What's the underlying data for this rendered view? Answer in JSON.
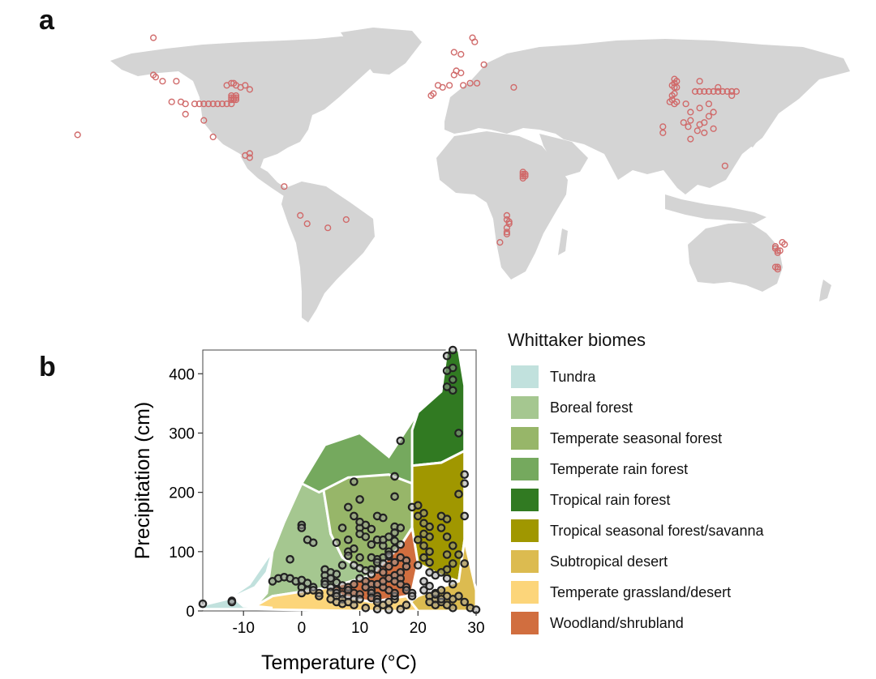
{
  "panels": {
    "a": "a",
    "b": "b"
  },
  "colors": {
    "land": "#d4d4d4",
    "site_marker": "#d06a6a",
    "point_stroke": "#222222",
    "point_fill": "#9a9a9a"
  },
  "map": {
    "sites_lonlat": [
      [
        -124,
        68
      ],
      [
        -124,
        50
      ],
      [
        -123,
        49
      ],
      [
        -120,
        47
      ],
      [
        -114,
        47
      ],
      [
        -82,
        43
      ],
      [
        -84,
        45
      ],
      [
        -86,
        44
      ],
      [
        -88,
        45
      ],
      [
        -92,
        45
      ],
      [
        -116,
        37
      ],
      [
        -112,
        37
      ],
      [
        -110,
        36
      ],
      [
        -106,
        36
      ],
      [
        -104,
        36
      ],
      [
        -102,
        36
      ],
      [
        -100,
        36
      ],
      [
        -98,
        36
      ],
      [
        -96,
        36
      ],
      [
        -94,
        36
      ],
      [
        -92,
        36
      ],
      [
        -90,
        36
      ],
      [
        -90,
        38
      ],
      [
        -89,
        38
      ],
      [
        -88,
        38
      ],
      [
        -90,
        39
      ],
      [
        -89,
        39
      ],
      [
        -88,
        39
      ],
      [
        -90,
        40
      ],
      [
        -88,
        40
      ],
      [
        -89,
        46
      ],
      [
        -90,
        46
      ],
      [
        -110,
        31
      ],
      [
        -102,
        28
      ],
      [
        -98,
        20
      ],
      [
        -84,
        11
      ],
      [
        -82,
        10
      ],
      [
        -82,
        12
      ],
      [
        -67,
        -4
      ],
      [
        -60,
        -18
      ],
      [
        -48,
        -24
      ],
      [
        -40,
        -20
      ],
      [
        -57,
        -22
      ],
      [
        -157,
        21
      ],
      [
        7,
        61
      ],
      [
        10,
        60
      ],
      [
        15,
        68
      ],
      [
        16,
        66
      ],
      [
        20,
        55
      ],
      [
        7,
        50
      ],
      [
        8,
        52
      ],
      [
        10,
        51
      ],
      [
        11,
        45
      ],
      [
        14,
        46
      ],
      [
        17,
        46
      ],
      [
        0,
        45
      ],
      [
        2,
        44
      ],
      [
        5,
        45
      ],
      [
        -3,
        40
      ],
      [
        -2,
        41
      ],
      [
        33,
        44
      ],
      [
        37,
        3
      ],
      [
        37,
        2
      ],
      [
        38,
        2
      ],
      [
        38,
        1
      ],
      [
        37,
        1
      ],
      [
        37,
        0
      ],
      [
        30,
        -18
      ],
      [
        30,
        -20
      ],
      [
        31,
        -21
      ],
      [
        31,
        -22
      ],
      [
        30,
        -24
      ],
      [
        30,
        -26
      ],
      [
        30,
        -27
      ],
      [
        27,
        -31
      ],
      [
        103,
        48
      ],
      [
        104,
        47
      ],
      [
        103,
        46
      ],
      [
        102,
        45
      ],
      [
        103,
        44
      ],
      [
        104,
        44
      ],
      [
        103,
        41
      ],
      [
        102,
        40
      ],
      [
        102,
        38
      ],
      [
        101,
        37
      ],
      [
        104,
        37
      ],
      [
        103,
        36
      ],
      [
        112,
        42
      ],
      [
        114,
        42
      ],
      [
        116,
        42
      ],
      [
        118,
        42
      ],
      [
        120,
        42
      ],
      [
        122,
        42
      ],
      [
        124,
        42
      ],
      [
        126,
        42
      ],
      [
        128,
        42
      ],
      [
        130,
        42
      ],
      [
        114,
        47
      ],
      [
        122,
        44
      ],
      [
        128,
        40
      ],
      [
        108,
        36
      ],
      [
        110,
        32
      ],
      [
        114,
        34
      ],
      [
        118,
        36
      ],
      [
        120,
        32
      ],
      [
        118,
        30
      ],
      [
        116,
        27
      ],
      [
        114,
        26
      ],
      [
        116,
        22
      ],
      [
        113,
        23
      ],
      [
        110,
        19
      ],
      [
        120,
        24
      ],
      [
        110,
        28
      ],
      [
        109,
        25
      ],
      [
        107,
        27
      ],
      [
        98,
        25
      ],
      [
        98,
        22
      ],
      [
        125,
        6
      ],
      [
        147,
        -33
      ],
      [
        148,
        -35
      ],
      [
        148,
        -36
      ],
      [
        147,
        -34
      ],
      [
        149,
        -35
      ],
      [
        150,
        -31
      ],
      [
        151,
        -32
      ],
      [
        148,
        -44
      ],
      [
        147,
        -43
      ],
      [
        148,
        -43
      ]
    ]
  },
  "chart_data": {
    "type": "scatter",
    "title": "",
    "xlabel": "Temperature (°C)",
    "ylabel": "Precipitation (cm)",
    "xlim": [
      -17,
      30
    ],
    "ylim": [
      0,
      440
    ],
    "xticks": [
      -10,
      0,
      10,
      20,
      30
    ],
    "yticks": [
      0,
      100,
      200,
      300,
      400
    ],
    "grid": false,
    "legend_placement": "right",
    "legend_title": "Whittaker biomes",
    "biomes": [
      {
        "name": "Tundra",
        "color": "#c1e1dd"
      },
      {
        "name": "Boreal forest",
        "color": "#a5c790"
      },
      {
        "name": "Temperate seasonal forest",
        "color": "#97b669"
      },
      {
        "name": "Temperate rain forest",
        "color": "#75a95e"
      },
      {
        "name": "Tropical rain forest",
        "color": "#317a22"
      },
      {
        "name": "Tropical seasonal forest/savanna",
        "color": "#a09700"
      },
      {
        "name": "Subtropical desert",
        "color": "#dcbb50"
      },
      {
        "name": "Temperate grassland/desert",
        "color": "#fcd57a"
      },
      {
        "name": "Woodland/shrubland",
        "color": "#d16e3f"
      }
    ],
    "points": [
      [
        -17,
        12
      ],
      [
        -12,
        17
      ],
      [
        -12,
        15
      ],
      [
        -5,
        50
      ],
      [
        -4,
        55
      ],
      [
        -3,
        57
      ],
      [
        -2,
        55
      ],
      [
        -1,
        50
      ],
      [
        -2,
        87
      ],
      [
        0,
        52
      ],
      [
        0,
        40
      ],
      [
        0,
        30
      ],
      [
        1,
        35
      ],
      [
        0,
        145
      ],
      [
        0,
        140
      ],
      [
        1,
        120
      ],
      [
        2,
        115
      ],
      [
        1,
        47
      ],
      [
        2,
        40
      ],
      [
        3,
        30
      ],
      [
        3,
        25
      ],
      [
        2,
        35
      ],
      [
        4,
        70
      ],
      [
        5,
        65
      ],
      [
        4,
        60
      ],
      [
        5,
        55
      ],
      [
        6,
        62
      ],
      [
        5,
        55
      ],
      [
        4,
        50
      ],
      [
        4,
        45
      ],
      [
        5,
        40
      ],
      [
        5,
        32
      ],
      [
        6,
        48
      ],
      [
        7,
        43
      ],
      [
        6,
        35
      ],
      [
        6,
        30
      ],
      [
        7,
        28
      ],
      [
        6,
        25
      ],
      [
        7,
        20
      ],
      [
        5,
        20
      ],
      [
        6,
        15
      ],
      [
        7,
        12
      ],
      [
        8,
        40
      ],
      [
        8,
        35
      ],
      [
        9,
        30
      ],
      [
        8,
        25
      ],
      [
        9,
        20
      ],
      [
        8,
        15
      ],
      [
        9,
        10
      ],
      [
        10,
        28
      ],
      [
        10,
        20
      ],
      [
        9,
        45
      ],
      [
        10,
        55
      ],
      [
        11,
        50
      ],
      [
        12,
        45
      ],
      [
        11,
        40
      ],
      [
        12,
        35
      ],
      [
        12,
        30
      ],
      [
        13,
        25
      ],
      [
        8,
        100
      ],
      [
        9,
        105
      ],
      [
        8,
        93
      ],
      [
        7,
        77
      ],
      [
        8,
        120
      ],
      [
        6,
        115
      ],
      [
        7,
        140
      ],
      [
        10,
        140
      ],
      [
        9,
        160
      ],
      [
        10,
        150
      ],
      [
        11,
        145
      ],
      [
        12,
        138
      ],
      [
        10,
        130
      ],
      [
        11,
        125
      ],
      [
        12,
        112
      ],
      [
        13,
        120
      ],
      [
        14,
        110
      ],
      [
        15,
        100
      ],
      [
        15,
        92
      ],
      [
        8,
        175
      ],
      [
        9,
        218
      ],
      [
        10,
        188
      ],
      [
        13,
        160
      ],
      [
        14,
        157
      ],
      [
        16,
        142
      ],
      [
        17,
        140
      ],
      [
        16,
        132
      ],
      [
        16,
        118
      ],
      [
        17,
        112
      ],
      [
        16,
        105
      ],
      [
        15,
        95
      ],
      [
        17,
        90
      ],
      [
        16,
        82
      ],
      [
        18,
        85
      ],
      [
        18,
        75
      ],
      [
        17,
        65
      ],
      [
        14,
        120
      ],
      [
        15,
        125
      ],
      [
        14,
        90
      ],
      [
        13,
        87
      ],
      [
        12,
        90
      ],
      [
        13,
        82
      ],
      [
        14,
        80
      ],
      [
        15,
        75
      ],
      [
        13,
        70
      ],
      [
        12,
        70
      ],
      [
        14,
        65
      ],
      [
        12,
        62
      ],
      [
        10,
        90
      ],
      [
        9,
        77
      ],
      [
        10,
        72
      ],
      [
        11,
        68
      ],
      [
        12,
        22
      ],
      [
        13,
        20
      ],
      [
        13,
        15
      ],
      [
        14,
        10
      ],
      [
        15,
        15
      ],
      [
        16,
        20
      ],
      [
        16,
        25
      ],
      [
        16,
        30
      ],
      [
        15,
        35
      ],
      [
        14,
        40
      ],
      [
        13,
        45
      ],
      [
        14,
        50
      ],
      [
        15,
        55
      ],
      [
        16,
        60
      ],
      [
        17,
        55
      ],
      [
        16,
        50
      ],
      [
        17,
        45
      ],
      [
        18,
        40
      ],
      [
        18,
        35
      ],
      [
        19,
        30
      ],
      [
        19,
        25
      ],
      [
        11,
        5
      ],
      [
        13,
        3
      ],
      [
        15,
        2
      ],
      [
        17,
        3
      ],
      [
        18,
        10
      ],
      [
        17,
        287
      ],
      [
        16,
        227
      ],
      [
        16,
        193
      ],
      [
        19,
        175
      ],
      [
        20,
        178
      ],
      [
        21,
        165
      ],
      [
        20,
        160
      ],
      [
        21,
        148
      ],
      [
        22,
        142
      ],
      [
        21,
        130
      ],
      [
        22,
        125
      ],
      [
        20,
        120
      ],
      [
        21,
        110
      ],
      [
        22,
        100
      ],
      [
        21,
        90
      ],
      [
        22,
        82
      ],
      [
        20,
        77
      ],
      [
        22,
        65
      ],
      [
        23,
        60
      ],
      [
        21,
        50
      ],
      [
        22,
        42
      ],
      [
        21,
        35
      ],
      [
        23,
        30
      ],
      [
        22,
        25
      ],
      [
        23,
        20
      ],
      [
        22,
        15
      ],
      [
        23,
        10
      ],
      [
        24,
        160
      ],
      [
        25,
        155
      ],
      [
        24,
        140
      ],
      [
        25,
        125
      ],
      [
        26,
        110
      ],
      [
        25,
        95
      ],
      [
        26,
        80
      ],
      [
        25,
        70
      ],
      [
        24,
        65
      ],
      [
        25,
        55
      ],
      [
        26,
        45
      ],
      [
        24,
        35
      ],
      [
        25,
        25
      ],
      [
        26,
        20
      ],
      [
        24,
        15
      ],
      [
        25,
        10
      ],
      [
        26,
        5
      ],
      [
        26,
        440
      ],
      [
        25,
        430
      ],
      [
        26,
        410
      ],
      [
        25,
        405
      ],
      [
        26,
        390
      ],
      [
        25,
        378
      ],
      [
        26,
        372
      ],
      [
        27,
        300
      ],
      [
        28,
        230
      ],
      [
        28,
        215
      ],
      [
        27,
        197
      ],
      [
        28,
        160
      ],
      [
        27,
        95
      ],
      [
        28,
        80
      ],
      [
        27,
        25
      ],
      [
        28,
        15
      ],
      [
        29,
        5
      ],
      [
        30,
        2
      ],
      [
        24,
        20
      ],
      [
        23,
        28
      ]
    ]
  }
}
